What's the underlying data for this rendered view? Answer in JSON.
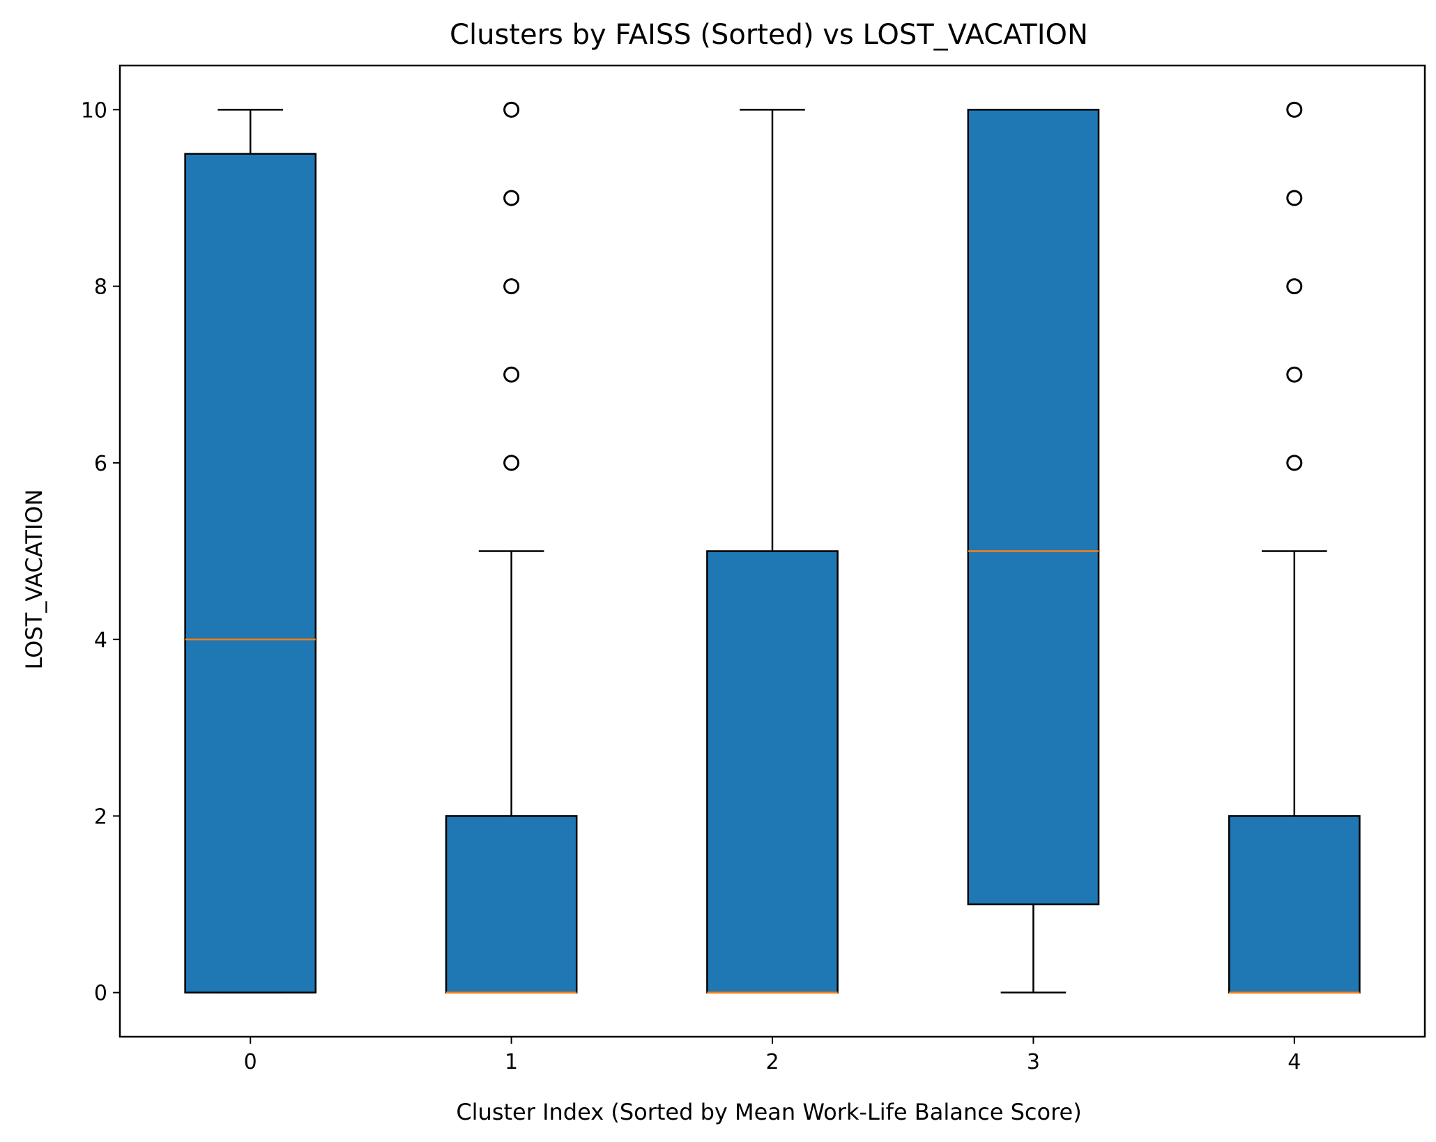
{
  "chart_data": {
    "type": "box",
    "title": "Clusters by FAISS (Sorted) vs LOST_VACATION",
    "xlabel": "Cluster Index (Sorted by Mean Work-Life Balance Score)",
    "ylabel": "LOST_VACATION",
    "categories": [
      "0",
      "1",
      "2",
      "3",
      "4"
    ],
    "yticks": [
      "0",
      "2",
      "4",
      "6",
      "8",
      "10"
    ],
    "ylim": [
      -0.5,
      10.5
    ],
    "xlim": [
      -0.5,
      4.5
    ],
    "grid": false,
    "legend": "none",
    "box_fill_color": "#1f77b4",
    "median_color": "#ff7f0e",
    "boxes": [
      {
        "category": "0",
        "whisker_low": 0,
        "q1": 0,
        "median": 4,
        "q3": 9.5,
        "whisker_high": 10,
        "outliers": []
      },
      {
        "category": "1",
        "whisker_low": 0,
        "q1": 0,
        "median": 0,
        "q3": 2,
        "whisker_high": 5,
        "outliers": [
          6,
          7,
          8,
          9,
          10
        ]
      },
      {
        "category": "2",
        "whisker_low": 0,
        "q1": 0,
        "median": 0,
        "q3": 5,
        "whisker_high": 10,
        "outliers": []
      },
      {
        "category": "3",
        "whisker_low": 0,
        "q1": 1,
        "median": 5,
        "q3": 10,
        "whisker_high": 10,
        "outliers": []
      },
      {
        "category": "4",
        "whisker_low": 0,
        "q1": 0,
        "median": 0,
        "q3": 2,
        "whisker_high": 5,
        "outliers": [
          6,
          7,
          8,
          9,
          10
        ]
      }
    ]
  }
}
